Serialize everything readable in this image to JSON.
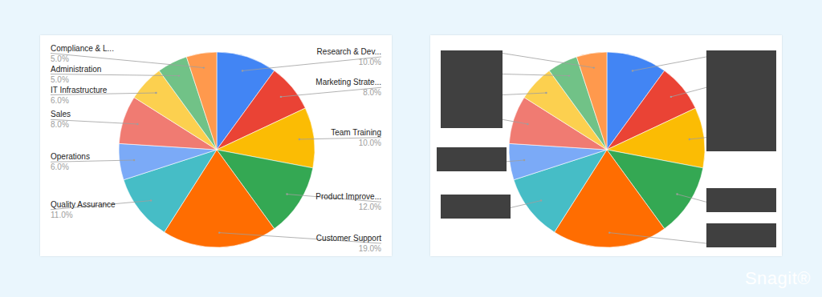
{
  "chart_data": [
    {
      "type": "pie",
      "categories": [
        "Research & Dev...",
        "Marketing Strate...",
        "Team Training",
        "Product Improve...",
        "Customer Support",
        "Quality Assurance",
        "Operations",
        "Sales",
        "IT Infrastructure",
        "Administration",
        "Compliance & L..."
      ],
      "values": [
        10,
        8,
        10,
        12,
        19,
        11,
        6,
        8,
        6,
        5,
        5
      ],
      "value_labels": [
        "10.0%",
        "8.0%",
        "10.0%",
        "12.0%",
        "19.0%",
        "11.0%",
        "6.0%",
        "8.0%",
        "6.0%",
        "5.0%",
        "5.0%"
      ],
      "colors": [
        "#4285f4",
        "#ea4335",
        "#fbbc04",
        "#34a853",
        "#ff6d01",
        "#46bdc6",
        "#7baaf7",
        "#f07b72",
        "#fcd04f",
        "#71c287",
        "#ff994d"
      ],
      "data_labels": true
    },
    {
      "type": "pie",
      "values": [
        10,
        8,
        10,
        12,
        19,
        11,
        6,
        8,
        6,
        5,
        5
      ],
      "colors": [
        "#4285f4",
        "#ea4335",
        "#fbbc04",
        "#34a853",
        "#ff6d01",
        "#46bdc6",
        "#7baaf7",
        "#f07b72",
        "#fcd04f",
        "#71c287",
        "#ff994d"
      ],
      "data_labels": false
    }
  ],
  "watermark": "Snagit®"
}
